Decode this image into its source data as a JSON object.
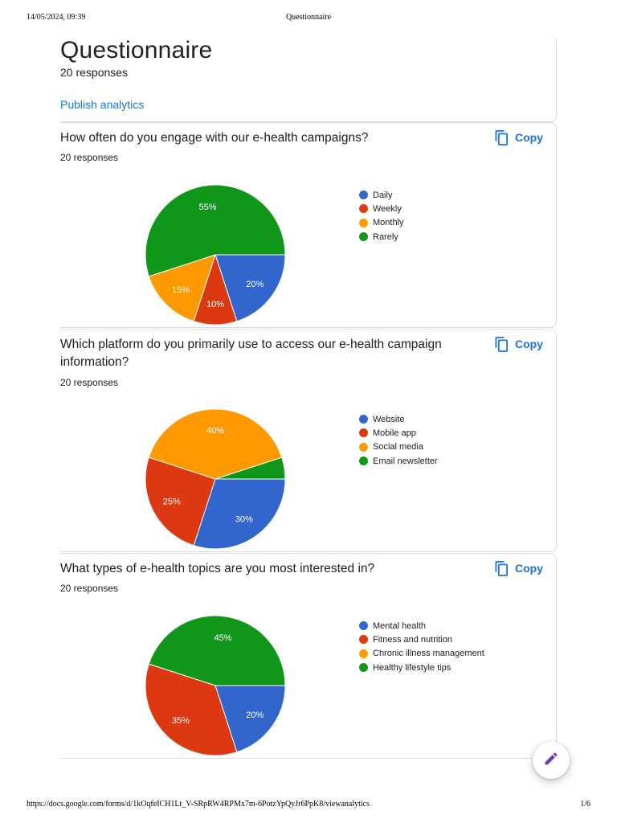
{
  "print_header": {
    "datetime": "14/05/2024, 09:39",
    "title": "Questionnaire"
  },
  "form": {
    "title": "Questionnaire",
    "responses": "20 responses",
    "publish_label": "Publish analytics"
  },
  "copy_label": "Copy",
  "colors": {
    "blue": "#3366cc",
    "red": "#dc3912",
    "orange": "#ff9900",
    "green": "#109618",
    "link": "#1a73e8",
    "fab_icon": "#673ab7"
  },
  "questions": [
    {
      "title": "How often do you engage with our e-health campaigns?",
      "responses": "20 responses"
    },
    {
      "title": "Which platform do you primarily use to access our e-health campaign information?",
      "responses": "20 responses"
    },
    {
      "title": "What types of e-health topics are you most interested in?",
      "responses": "20 responses"
    }
  ],
  "chart_data": [
    {
      "type": "pie",
      "categories": [
        "Daily",
        "Weekly",
        "Monthly",
        "Rarely"
      ],
      "values": [
        20,
        10,
        15,
        55
      ],
      "labels": [
        "20%",
        "10%",
        "15%",
        "55%"
      ],
      "colors": [
        "#3366cc",
        "#dc3912",
        "#ff9900",
        "#109618"
      ],
      "legend": "right"
    },
    {
      "type": "pie",
      "categories": [
        "Website",
        "Mobile app",
        "Social media",
        "Email newsletter"
      ],
      "values": [
        30,
        25,
        40,
        5
      ],
      "labels": [
        "30%",
        "25%",
        "40%",
        ""
      ],
      "colors": [
        "#3366cc",
        "#dc3912",
        "#ff9900",
        "#109618"
      ],
      "legend": "right"
    },
    {
      "type": "pie",
      "categories": [
        "Mental health",
        "Fitness and nutrition",
        "Chronic illness management",
        "Healthy lifestyle tips"
      ],
      "values": [
        20,
        35,
        0,
        45
      ],
      "labels": [
        "20%",
        "35%",
        "",
        "45%"
      ],
      "colors": [
        "#3366cc",
        "#dc3912",
        "#ff9900",
        "#109618"
      ],
      "legend": "right"
    }
  ],
  "print_footer": {
    "url": "https://docs.google.com/forms/d/1kOqfeICH1Lt_V-SRpRW4RPMx7m-6PotzYpQyJr6PpK8/viewanalytics",
    "page": "1/6"
  },
  "icons": {
    "copy": "copy-icon",
    "edit": "pencil-icon"
  }
}
